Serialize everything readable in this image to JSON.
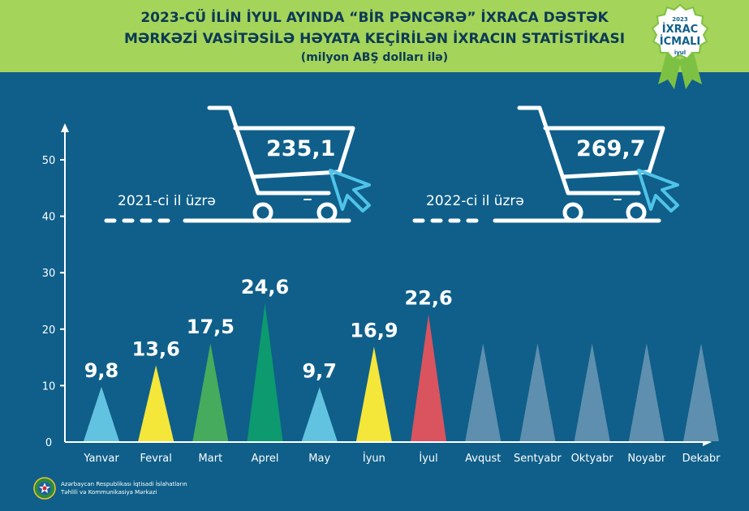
{
  "header": {
    "title_line1": "2023-CÜ İLİN İYUL AYINDA “BİR PƏNCƏRƏ” İXRACA DƏSTƏK",
    "title_line2": "MƏRKƏZİ VASİTƏSİLƏ HƏYATA KEÇİRİLƏN İXRACIN STATİSTİKASI",
    "subtitle": "(milyon ABŞ dolları ilə)"
  },
  "badge": {
    "year": "2023",
    "line1": "İXRAC",
    "line2": "İCMALI",
    "month": "iyul"
  },
  "comparison": [
    {
      "value": "235,1",
      "label": "2021-ci il üzrə"
    },
    {
      "value": "269,7",
      "label": "2022-ci il üzrə"
    }
  ],
  "footer": {
    "line1": "Azərbaycan Respublikası İqtisadi İslahatların",
    "line2": "Təhlili və Kommunikasiya Mərkəzi"
  },
  "colors": {
    "background": "#0f5f8a",
    "header": "#a5d45a",
    "future_month": "#5f8fae"
  },
  "chart_data": {
    "type": "bar",
    "shape": "cone",
    "title": "2023-CÜ İLİN İYUL AYINDA “BİR PƏNCƏRƏ” İXRACA DƏSTƏK MƏRKƏZİ VASİTƏSİLƏ HƏYATA KEÇİRİLƏN İXRACIN STATİSTİKASI",
    "ylabel": "",
    "xlabel": "",
    "ylim": [
      0,
      55
    ],
    "yticks": [
      0,
      10,
      20,
      30,
      40,
      50
    ],
    "grid": false,
    "categories": [
      "Yanvar",
      "Fevral",
      "Mart",
      "Aprel",
      "May",
      "İyun",
      "İyul",
      "Avqust",
      "Sentyabr",
      "Oktyabr",
      "Noyabr",
      "Dekabr"
    ],
    "values": [
      9.8,
      13.6,
      17.5,
      24.6,
      9.7,
      16.9,
      22.6,
      null,
      null,
      null,
      null,
      null
    ],
    "data_labels": [
      "9,8",
      "13,6",
      "17,5",
      "24,6",
      "9,7",
      "16,9",
      "22,6",
      "",
      "",
      "",
      "",
      ""
    ],
    "placeholder_value": 17.5,
    "bar_colors": [
      "#62c3e0",
      "#f5e63a",
      "#46ab5c",
      "#0c9a6e",
      "#62c3e0",
      "#f5e63a",
      "#d9545f",
      "#5f8fae",
      "#5f8fae",
      "#5f8fae",
      "#5f8fae",
      "#5f8fae"
    ]
  }
}
